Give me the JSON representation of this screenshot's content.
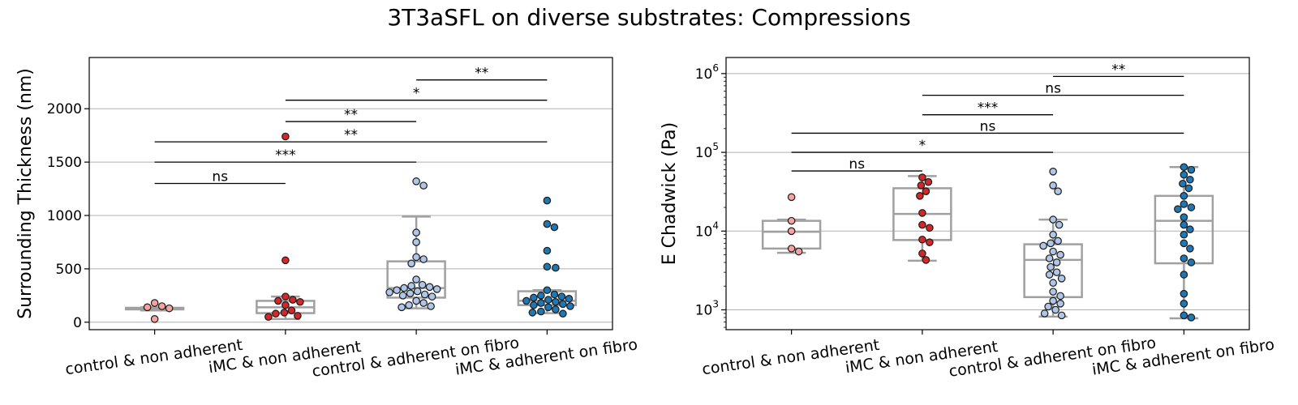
{
  "figure": {
    "title": "3T3aSFL on diverse substrates: Compressions"
  },
  "chart_data": [
    {
      "type": "box-swarm",
      "title": "",
      "xlabel": "",
      "ylabel": "Surrounding Thickness (nm)",
      "yscale": "linear",
      "ylim": [
        -70,
        2480
      ],
      "yticks": [
        0,
        500,
        1000,
        1500,
        2000
      ],
      "ytick_labels": [
        "0",
        "500",
        "1000",
        "1500",
        "2000"
      ],
      "grid": "horizontal",
      "categories": [
        "control & non adherent",
        "iMC & non adherent",
        "control & adherent on fibro",
        "iMC & adherent on fibro"
      ],
      "colors": [
        "#f4a3a0",
        "#d62728",
        "#aec7e8",
        "#1f77b4"
      ],
      "boxes": [
        {
          "whislo": 110,
          "q1": 120,
          "med": 125,
          "q3": 135,
          "whishi": 140
        },
        {
          "whislo": 30,
          "q1": 85,
          "med": 140,
          "q3": 200,
          "whishi": 240
        },
        {
          "whislo": 130,
          "q1": 230,
          "med": 320,
          "q3": 570,
          "whishi": 990
        },
        {
          "whislo": 85,
          "q1": 160,
          "med": 200,
          "q3": 290,
          "whishi": 300
        }
      ],
      "points": [
        [
          180,
          150,
          140,
          130,
          30
        ],
        [
          580,
          1740,
          240,
          210,
          200,
          190,
          160,
          110,
          90,
          80,
          60,
          50
        ],
        [
          1320,
          1280,
          840,
          750,
          610,
          590,
          550,
          400,
          350,
          340,
          330,
          320,
          310,
          300,
          290,
          280,
          270,
          260,
          250,
          240,
          200,
          180,
          160,
          150,
          140
        ],
        [
          1140,
          920,
          890,
          670,
          520,
          510,
          300,
          260,
          250,
          240,
          230,
          220,
          210,
          200,
          190,
          180,
          170,
          160,
          150,
          140,
          120,
          100,
          90,
          80
        ]
      ],
      "significance": [
        {
          "from": 0,
          "to": 1,
          "y": 1300,
          "label": "ns"
        },
        {
          "from": 0,
          "to": 2,
          "y": 1500,
          "label": "***"
        },
        {
          "from": 0,
          "to": 3,
          "y": 1690,
          "label": "**"
        },
        {
          "from": 1,
          "to": 2,
          "y": 1880,
          "label": "**"
        },
        {
          "from": 1,
          "to": 3,
          "y": 2080,
          "label": "*"
        },
        {
          "from": 2,
          "to": 3,
          "y": 2270,
          "label": "**"
        }
      ]
    },
    {
      "type": "box-swarm",
      "title": "",
      "xlabel": "",
      "ylabel": "E Chadwick (Pa)",
      "yscale": "log",
      "ylim": [
        560,
        1600000
      ],
      "yticks": [
        1000,
        10000,
        100000,
        1000000
      ],
      "ytick_labels": [
        "10",
        "10",
        "10",
        "10"
      ],
      "ytick_exponents": [
        "3",
        "4",
        "5",
        "6"
      ],
      "grid": "horizontal",
      "categories": [
        "control & non adherent",
        "iMC & non adherent",
        "control & adherent on fibro",
        "iMC & adherent on fibro"
      ],
      "colors": [
        "#f4a3a0",
        "#d62728",
        "#aec7e8",
        "#1f77b4"
      ],
      "boxes": [
        {
          "whislo": 5300,
          "q1": 6000,
          "med": 9800,
          "q3": 13500,
          "whishi": 14000
        },
        {
          "whislo": 4200,
          "q1": 7700,
          "med": 16500,
          "q3": 35000,
          "whishi": 50000
        },
        {
          "whislo": 820,
          "q1": 1450,
          "med": 4300,
          "q3": 6800,
          "whishi": 14000
        },
        {
          "whislo": 780,
          "q1": 3900,
          "med": 13500,
          "q3": 28000,
          "whishi": 65000
        }
      ],
      "points": [
        [
          27000,
          13500,
          10000,
          6000,
          5500
        ],
        [
          48000,
          42000,
          38000,
          32000,
          28000,
          17000,
          12000,
          11000,
          7800,
          7200,
          5200,
          4300
        ],
        [
          57000,
          38000,
          32000,
          14000,
          12000,
          9000,
          7500,
          7000,
          6500,
          5500,
          5000,
          4500,
          4000,
          3500,
          3000,
          2800,
          2500,
          2200,
          1700,
          1500,
          1300,
          1200,
          1100,
          1000,
          900,
          850
        ],
        [
          65000,
          60000,
          52000,
          45000,
          40000,
          35000,
          28000,
          22000,
          20000,
          19000,
          15000,
          12000,
          10500,
          9000,
          7000,
          6000,
          4500,
          4000,
          2800,
          1600,
          1200,
          850,
          800
        ]
      ],
      "significance": [
        {
          "from": 0,
          "to": 1,
          "y": 58000,
          "label": "ns"
        },
        {
          "from": 0,
          "to": 2,
          "y": 100000,
          "label": "*"
        },
        {
          "from": 0,
          "to": 3,
          "y": 175000,
          "label": "ns"
        },
        {
          "from": 1,
          "to": 2,
          "y": 300000,
          "label": "***"
        },
        {
          "from": 1,
          "to": 3,
          "y": 530000,
          "label": "ns"
        },
        {
          "from": 2,
          "to": 3,
          "y": 920000,
          "label": "**"
        }
      ]
    }
  ]
}
